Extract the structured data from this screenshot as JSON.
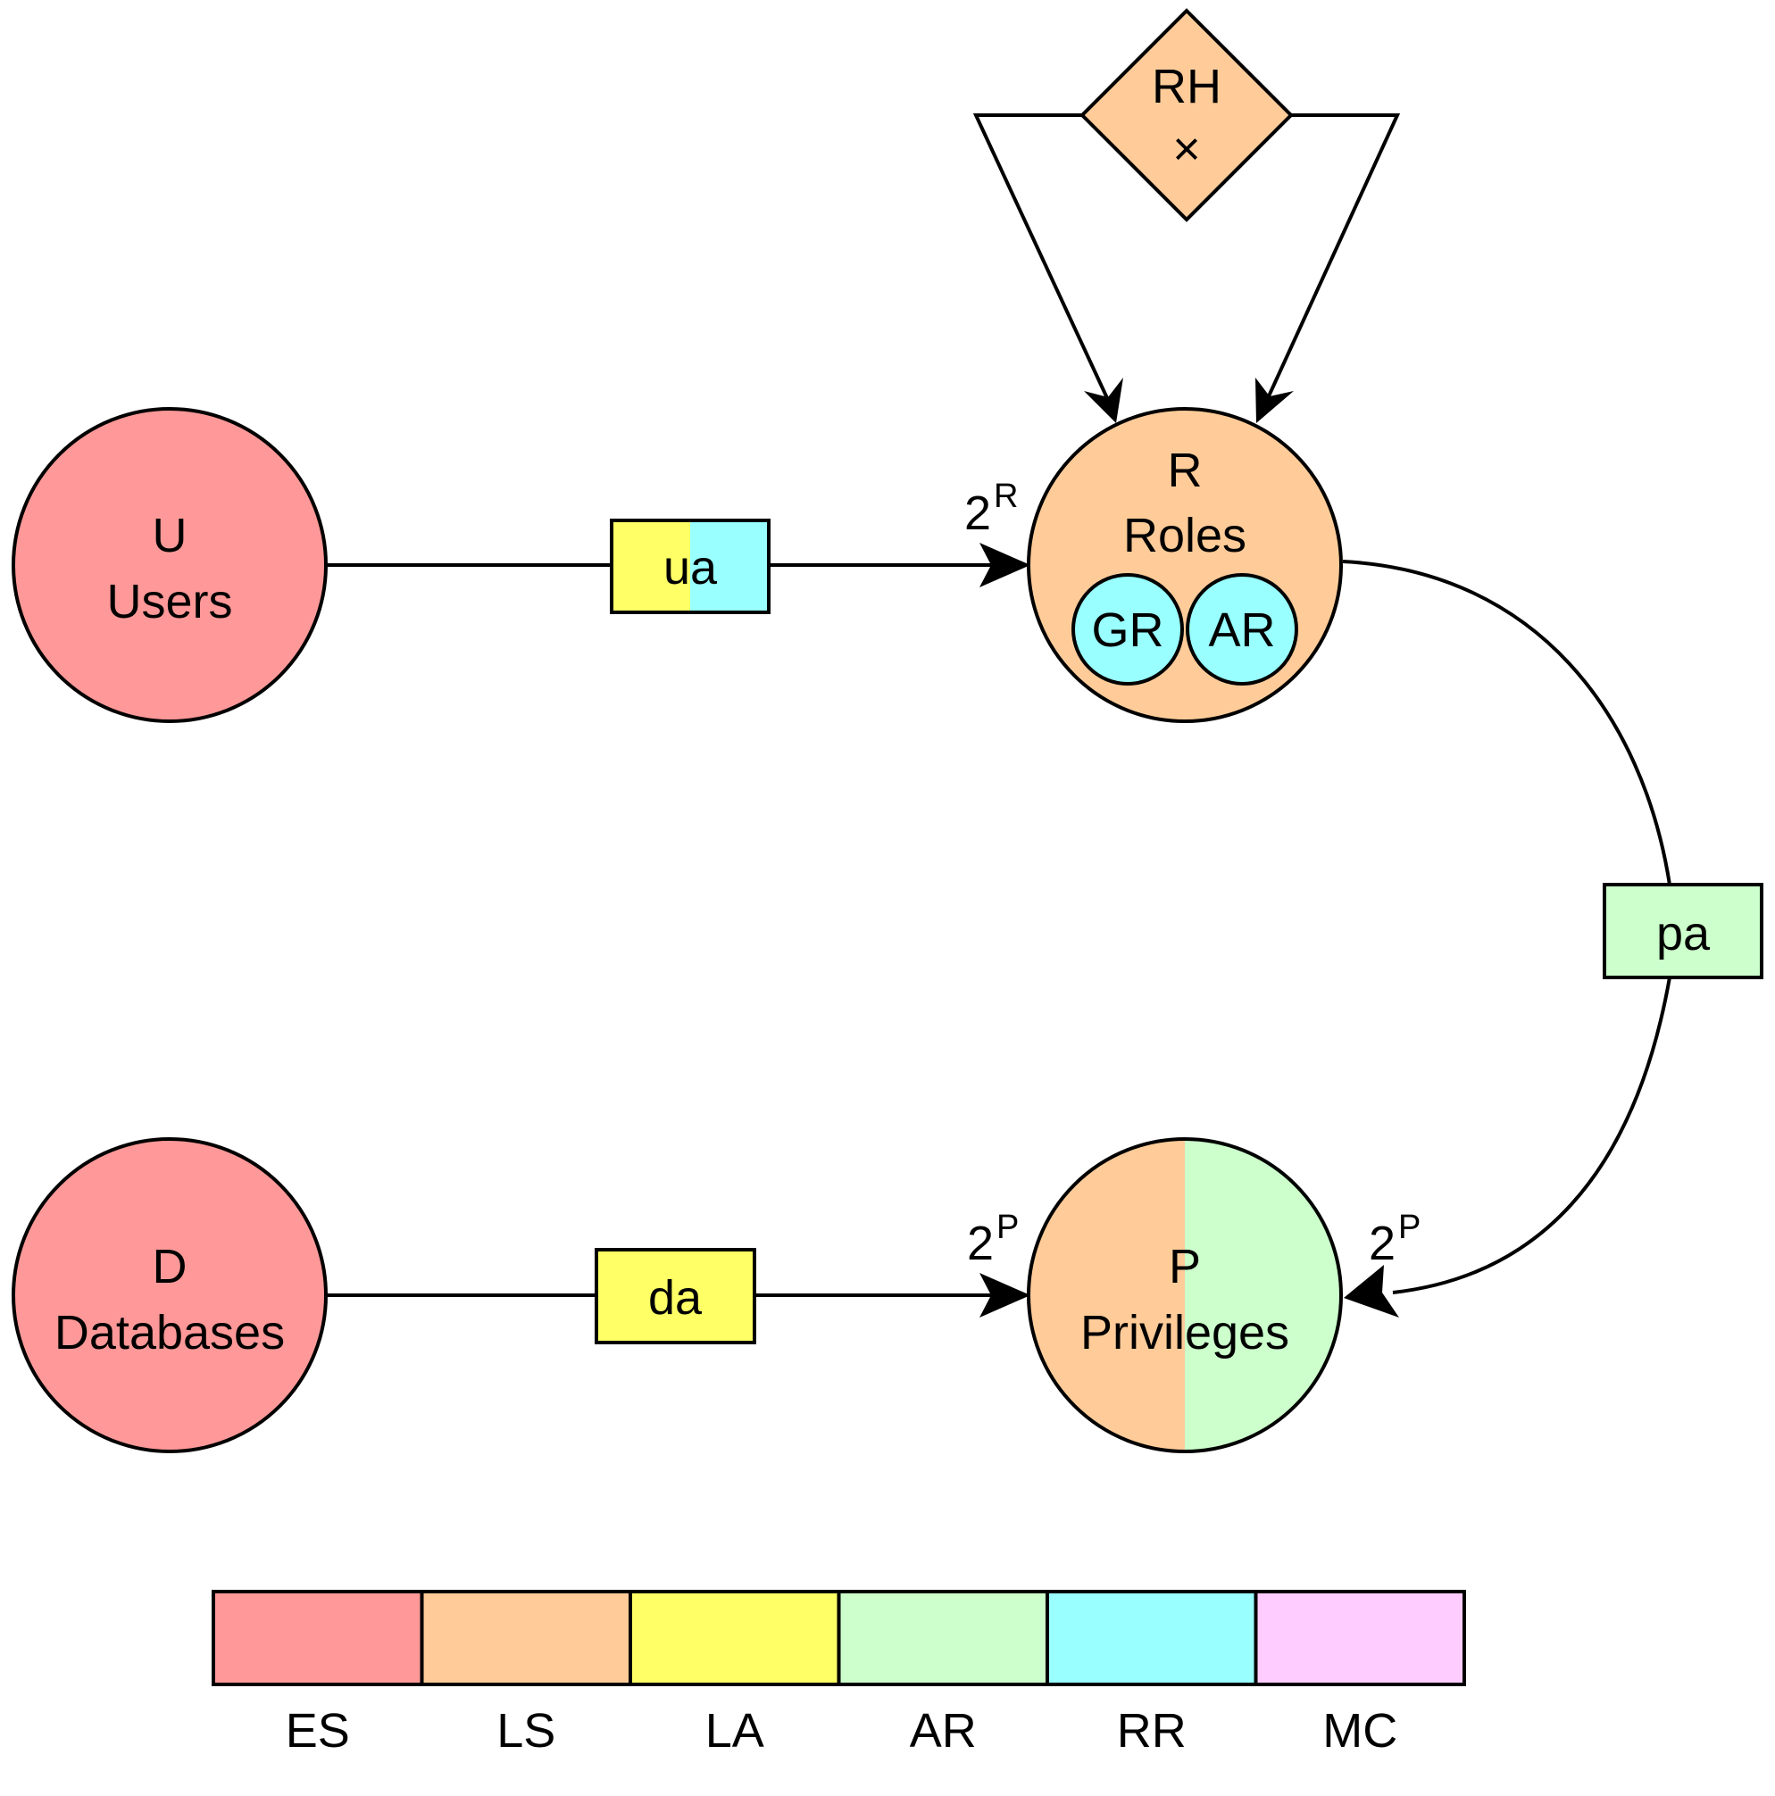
{
  "colors": {
    "ES": "#FF9999",
    "LS": "#FFCC99",
    "LA": "#FFFF66",
    "AR": "#CCFFCC",
    "RR": "#99FFFF",
    "MC": "#FFCCFF"
  },
  "nodes": {
    "users": {
      "symbol": "U",
      "name": "Users"
    },
    "roles": {
      "symbol": "R",
      "name": "Roles"
    },
    "gr": {
      "label": "GR"
    },
    "ar": {
      "label": "AR"
    },
    "databases": {
      "symbol": "D",
      "name": "Databases"
    },
    "privileges": {
      "symbol": "P",
      "name": "Privileges"
    },
    "rh": {
      "label": "RH",
      "symbol": "×"
    }
  },
  "relations": {
    "ua": "ua",
    "pa": "pa",
    "da": "da"
  },
  "powerset": {
    "base": "2",
    "roles_sup": "R",
    "priv_sup": "P"
  },
  "legend": [
    {
      "key": "ES",
      "label": "ES",
      "color": "#FF9999"
    },
    {
      "key": "LS",
      "label": "LS",
      "color": "#FFCC99"
    },
    {
      "key": "LA",
      "label": "LA",
      "color": "#FFFF66"
    },
    {
      "key": "AR",
      "label": "AR",
      "color": "#CCFFCC"
    },
    {
      "key": "RR",
      "label": "RR",
      "color": "#99FFFF"
    },
    {
      "key": "MC",
      "label": "MC",
      "color": "#FFCCFF"
    }
  ]
}
